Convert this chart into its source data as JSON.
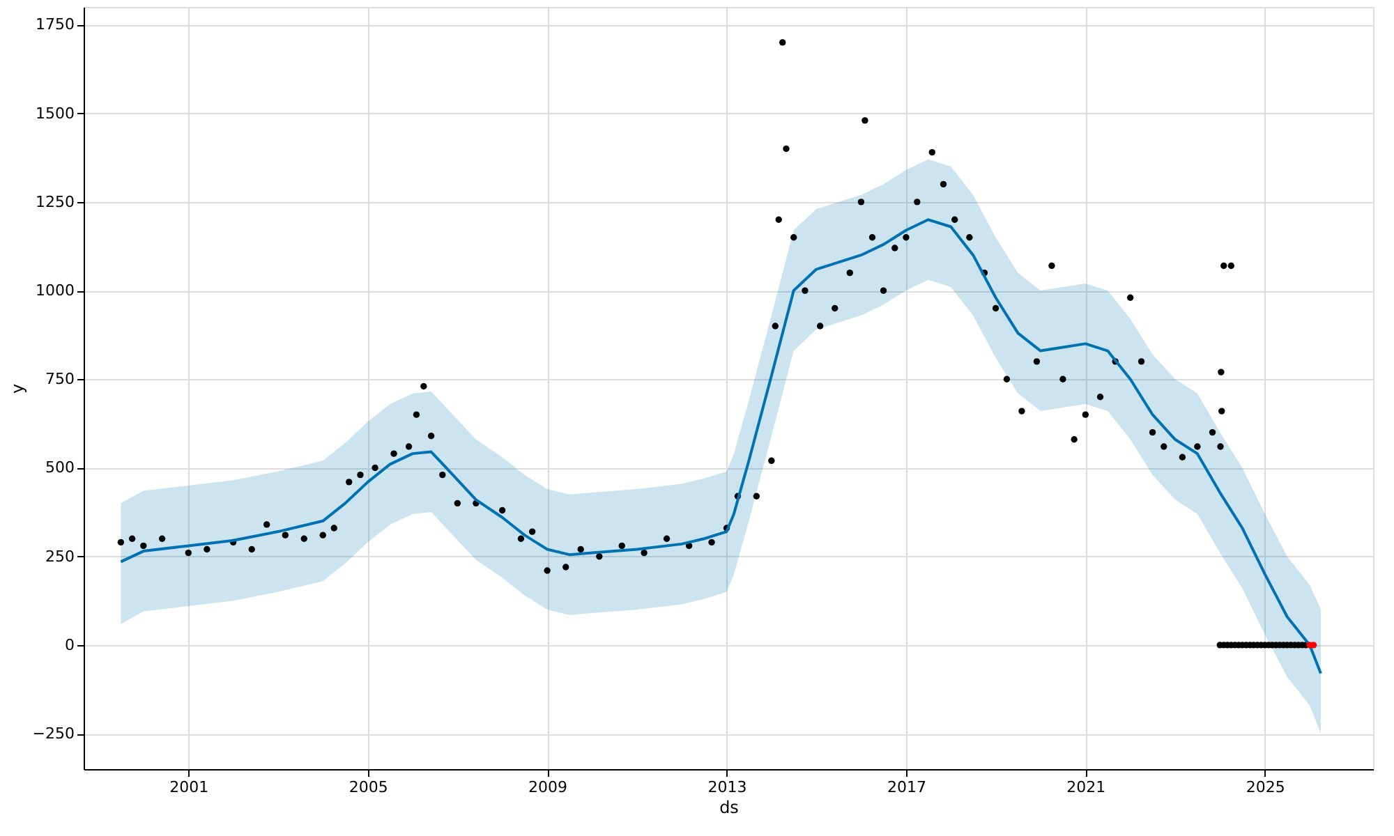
{
  "chart_data": {
    "type": "line",
    "xlabel": "ds",
    "ylabel": "y",
    "xlim": [
      "1998-09",
      "2027-06"
    ],
    "ylim": [
      -350,
      1800
    ],
    "xticks": [
      {
        "value": "2001",
        "label": "2001"
      },
      {
        "value": "2005",
        "label": "2005"
      },
      {
        "value": "2009",
        "label": "2009"
      },
      {
        "value": "2013",
        "label": "2013"
      },
      {
        "value": "2017",
        "label": "2017"
      },
      {
        "value": "2021",
        "label": "2021"
      },
      {
        "value": "2025",
        "label": "2025"
      }
    ],
    "yticks": [
      {
        "value": -250,
        "label": "−250"
      },
      0,
      250,
      500,
      750,
      1000,
      1250,
      1500,
      1750
    ],
    "grid": true,
    "line_style": "solid",
    "series": [
      {
        "type": "scatter",
        "marker": "circle",
        "color": "#000000",
        "x": [
          "1999-07",
          "1999-10",
          "2000-01",
          "2000-06",
          "2001-01",
          "2001-06",
          "2002-01",
          "2002-06",
          "2002-10",
          "2003-03",
          "2003-08",
          "2004-01",
          "2004-04",
          "2004-08",
          "2004-11",
          "2005-03",
          "2005-08",
          "2005-12",
          "2006-02",
          "2006-04",
          "2006-06",
          "2006-09",
          "2007-01",
          "2007-06",
          "2008-01",
          "2008-06",
          "2008-09",
          "2009-01",
          "2009-06",
          "2009-10",
          "2010-03",
          "2010-09",
          "2011-03",
          "2011-09",
          "2012-03",
          "2012-09",
          "2013-01",
          "2013-04",
          "2013-09",
          "2014-01",
          "2014-02",
          "2014-03",
          "2014-04",
          "2014-05",
          "2014-07",
          "2014-10",
          "2015-02",
          "2015-06",
          "2015-10",
          "2016-01",
          "2016-02",
          "2016-04",
          "2016-07",
          "2016-10",
          "2017-01",
          "2017-04",
          "2017-08",
          "2017-11",
          "2018-02",
          "2018-06",
          "2018-10",
          "2019-01",
          "2019-04",
          "2019-08",
          "2019-12",
          "2020-04",
          "2020-07",
          "2020-10",
          "2021-01",
          "2021-05",
          "2021-09",
          "2022-01",
          "2022-04",
          "2022-07",
          "2022-10",
          "2023-03",
          "2023-07",
          "2023-11",
          "2024-01-05",
          "2024-01-10",
          "2024-01-15",
          "2024-02",
          "2024-04"
        ],
        "values": [
          290,
          300,
          280,
          300,
          260,
          270,
          290,
          270,
          340,
          310,
          300,
          310,
          330,
          460,
          480,
          500,
          540,
          560,
          650,
          730,
          590,
          480,
          400,
          400,
          380,
          300,
          320,
          210,
          220,
          270,
          250,
          280,
          260,
          300,
          280,
          290,
          330,
          420,
          420,
          520,
          900,
          1200,
          1700,
          1400,
          1150,
          1000,
          900,
          950,
          1050,
          1250,
          1480,
          1150,
          1000,
          1120,
          1150,
          1250,
          1390,
          1300,
          1200,
          1150,
          1050,
          950,
          750,
          660,
          800,
          1070,
          750,
          580,
          650,
          700,
          800,
          980,
          800,
          600,
          560,
          530,
          560,
          600,
          560,
          770,
          660,
          1070,
          1070
        ]
      },
      {
        "type": "scatter",
        "marker": "circle",
        "color": "#000000",
        "x": [
          "2024-01",
          "2024-02",
          "2024-03",
          "2024-04",
          "2024-05",
          "2024-06",
          "2024-07",
          "2024-08",
          "2024-09",
          "2024-10",
          "2024-11",
          "2024-12",
          "2025-01",
          "2025-02",
          "2025-03",
          "2025-04",
          "2025-05",
          "2025-06",
          "2025-07",
          "2025-08",
          "2025-09",
          "2025-10",
          "2025-11",
          "2025-12"
        ],
        "values": [
          0,
          0,
          0,
          0,
          0,
          0,
          0,
          0,
          0,
          0,
          0,
          0,
          0,
          0,
          0,
          0,
          0,
          0,
          0,
          0,
          0,
          0,
          0,
          0
        ]
      },
      {
        "type": "line",
        "color": "#0072b2",
        "x": [
          "1999-07",
          "2000-01",
          "2001-01",
          "2002-01",
          "2003-01",
          "2004-01",
          "2004-07",
          "2005-01",
          "2005-07",
          "2006-01",
          "2006-06",
          "2006-10",
          "2007-06",
          "2008-01",
          "2008-07",
          "2009-01",
          "2009-07",
          "2010-01",
          "2011-01",
          "2012-01",
          "2012-07",
          "2013-01",
          "2013-03",
          "2013-07",
          "2014-01",
          "2014-07",
          "2015-01",
          "2016-01",
          "2016-07",
          "2017-01",
          "2017-07",
          "2018-01",
          "2018-07",
          "2019-01",
          "2019-07",
          "2020-01",
          "2020-07",
          "2021-01",
          "2021-07",
          "2022-01",
          "2022-07",
          "2023-01",
          "2023-07",
          "2024-01",
          "2024-07",
          "2025-01",
          "2025-07",
          "2026-01",
          "2026-04"
        ],
        "values": [
          235,
          265,
          280,
          295,
          320,
          350,
          400,
          460,
          510,
          540,
          545,
          500,
          410,
          360,
          310,
          270,
          255,
          260,
          270,
          285,
          300,
          320,
          370,
          520,
          760,
          1000,
          1060,
          1100,
          1130,
          1170,
          1200,
          1180,
          1100,
          980,
          880,
          830,
          840,
          850,
          830,
          750,
          650,
          580,
          540,
          430,
          330,
          200,
          80,
          0,
          -80
        ],
        "lower": [
          60,
          95,
          110,
          125,
          150,
          180,
          230,
          290,
          340,
          370,
          375,
          330,
          240,
          190,
          140,
          100,
          85,
          90,
          100,
          115,
          130,
          150,
          200,
          350,
          590,
          830,
          890,
          930,
          960,
          1000,
          1030,
          1010,
          930,
          810,
          710,
          660,
          670,
          680,
          660,
          580,
          480,
          410,
          370,
          260,
          160,
          30,
          -90,
          -170,
          -250
        ],
        "upper": [
          400,
          435,
          450,
          465,
          490,
          520,
          570,
          630,
          680,
          710,
          715,
          670,
          580,
          530,
          480,
          440,
          425,
          430,
          440,
          455,
          470,
          490,
          540,
          690,
          930,
          1170,
          1230,
          1270,
          1300,
          1340,
          1370,
          1350,
          1270,
          1150,
          1050,
          1000,
          1010,
          1020,
          1000,
          920,
          820,
          750,
          710,
          600,
          500,
          370,
          250,
          170,
          100
        ]
      },
      {
        "type": "scatter",
        "marker": "circle",
        "color": "#ff0000",
        "x": [
          "2026-01",
          "2026-02"
        ],
        "values": [
          0,
          0
        ]
      }
    ]
  }
}
